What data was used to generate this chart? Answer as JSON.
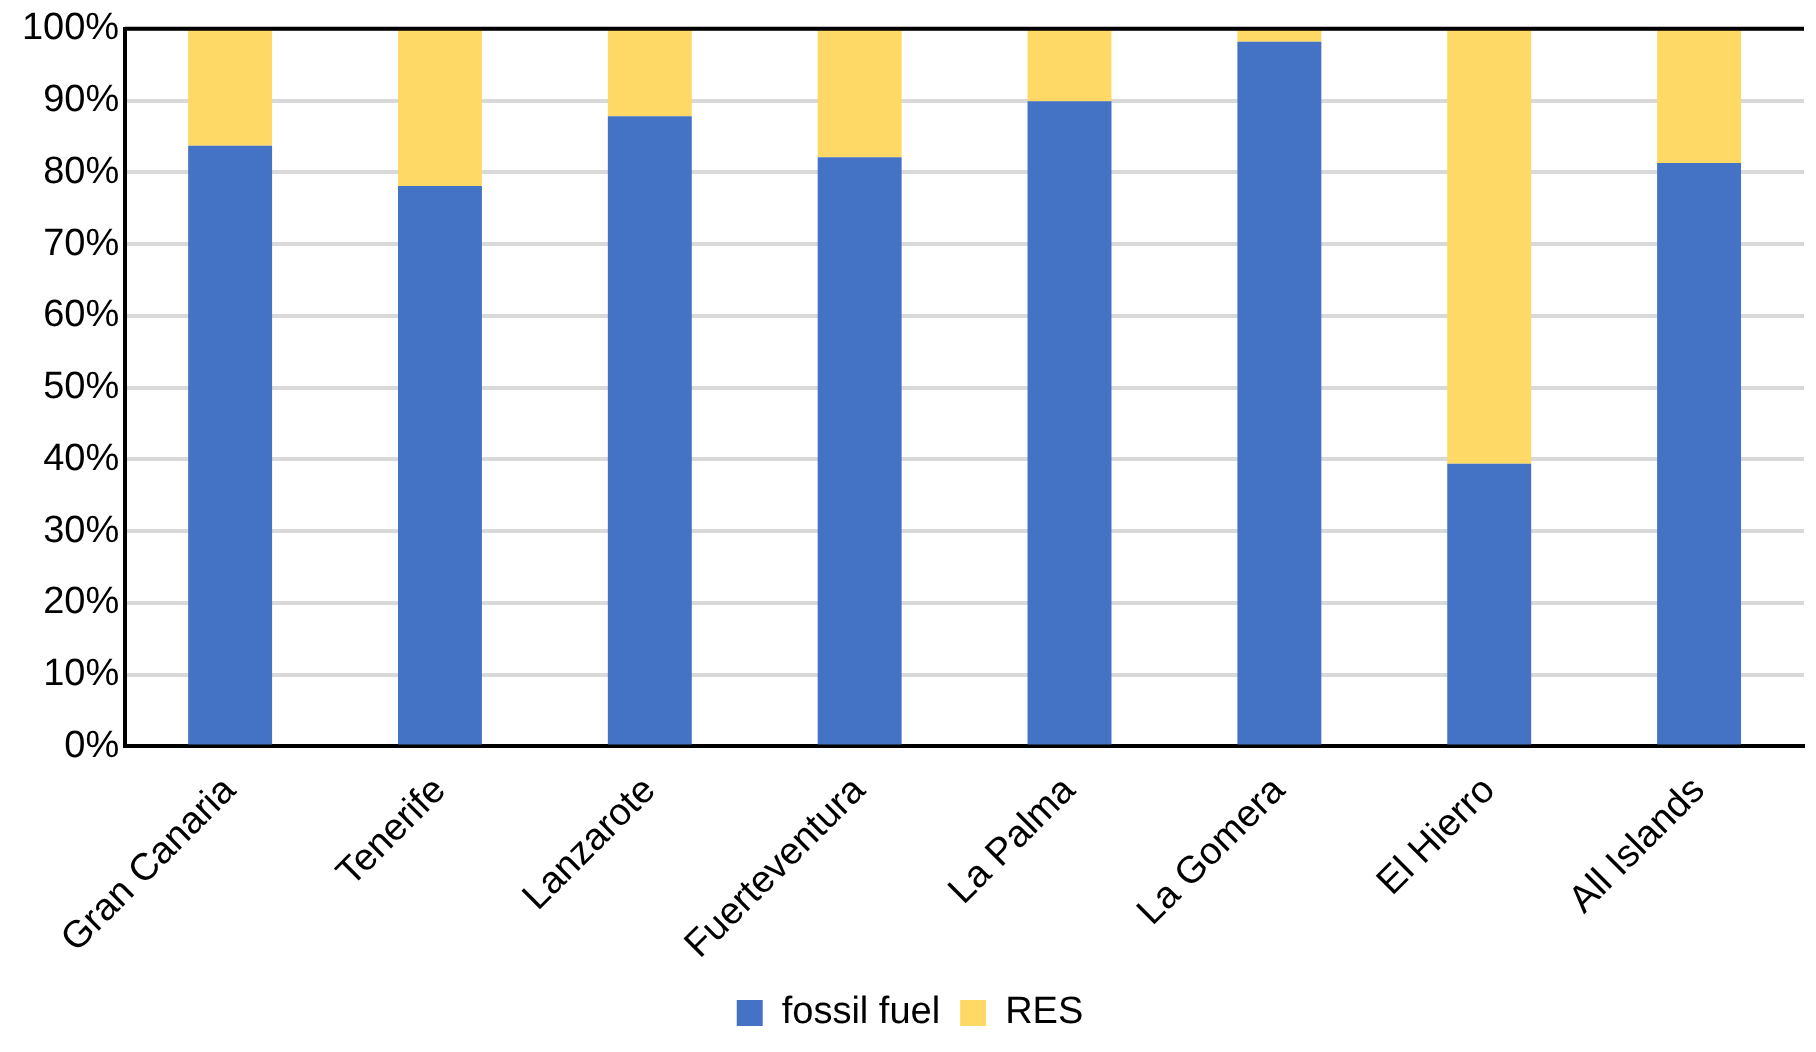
{
  "chart_data": {
    "type": "bar",
    "stacked": true,
    "categories": [
      "Gran Canaria",
      "Tenerife",
      "Lanzarote",
      "Fuerteventura",
      "La Palma",
      "La Gomera",
      "El Hierro",
      "All Islands"
    ],
    "series": [
      {
        "name": "fossil fuel",
        "color": "#4472c4",
        "values": [
          83.7,
          78.1,
          87.8,
          82.1,
          89.9,
          98.2,
          39.4,
          81.3
        ]
      },
      {
        "name": "RES",
        "color": "#ffd966",
        "values": [
          16.3,
          21.9,
          12.2,
          17.9,
          10.1,
          1.8,
          60.6,
          18.7
        ]
      }
    ],
    "ylim": [
      0,
      100
    ],
    "yticks": [
      {
        "value": 0,
        "label": "0%"
      },
      {
        "value": 10,
        "label": "10%"
      },
      {
        "value": 20,
        "label": "20%"
      },
      {
        "value": 30,
        "label": "30%"
      },
      {
        "value": 40,
        "label": "40%"
      },
      {
        "value": 50,
        "label": "50%"
      },
      {
        "value": 60,
        "label": "60%"
      },
      {
        "value": 70,
        "label": "70%"
      },
      {
        "value": 80,
        "label": "80%"
      },
      {
        "value": 90,
        "label": "90%"
      },
      {
        "value": 100,
        "label": "100%"
      }
    ],
    "grid": "y",
    "legend": "bottom"
  }
}
